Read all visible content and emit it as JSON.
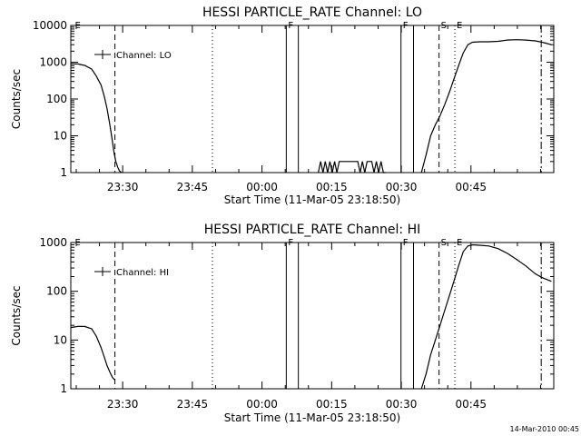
{
  "chart_data": [
    {
      "type": "line",
      "title": "HESSI PARTICLE_RATE Channel: LO",
      "xlabel": "Start Time (11-Mar-05 23:18:50)",
      "ylabel": "Counts/sec",
      "yscale": "log",
      "ylim": [
        1,
        10000
      ],
      "xlim_minutes_after_start": [
        0,
        104
      ],
      "x_tick_labels": [
        "23:30",
        "23:45",
        "00:00",
        "00:15",
        "00:30",
        "00:45"
      ],
      "x_tick_minutes": [
        11.17,
        26.17,
        41.17,
        56.17,
        71.17,
        86.17
      ],
      "y_ticks": [
        1,
        10,
        100,
        1000,
        10000
      ],
      "y_tick_labels": [
        "1",
        "10",
        "100",
        "1000",
        "10000"
      ],
      "grid": false,
      "legend": {
        "placement": "top-left",
        "entries": [
          "Channel: LO"
        ]
      },
      "series": [
        {
          "name": "Channel: LO",
          "segments": [
            {
              "x": [
                0,
                1.5,
                3,
                4.5,
                5.5,
                6.5,
                7.2,
                7.8,
                8.4,
                8.9,
                9.3,
                9.7,
                10.1,
                10.5,
                10.9
              ],
              "y": [
                900,
                900,
                820,
                650,
                420,
                240,
                120,
                55,
                20,
                8,
                3.5,
                2,
                1.4,
                1.1,
                1
              ]
            },
            {
              "x": [
                53.3,
                53.8,
                54.3,
                54.8,
                55.3,
                55.8,
                56.3,
                56.8,
                57.3,
                57.8,
                58.3,
                58.8,
                59.3,
                59.8,
                60.3,
                60.8,
                61.3,
                61.8,
                62.3,
                62.8,
                63.3,
                63.8,
                64.3,
                64.8,
                65.3,
                65.8,
                66.3,
                66.8,
                67.3,
                67.8
              ],
              "y": [
                1,
                2,
                1,
                2,
                1,
                2,
                1,
                2,
                1,
                2,
                2,
                2,
                2,
                2,
                2,
                2,
                2,
                2,
                1,
                2,
                1,
                2,
                2,
                2,
                1,
                2,
                1,
                2,
                1,
                1
              ]
            },
            {
              "x": [
                75.5,
                76.5,
                77.5,
                78.5,
                79.5,
                80.5,
                81.5,
                82.5,
                83.5,
                84.5,
                85.5,
                86.5,
                88,
                90,
                92,
                94,
                96,
                98,
                100,
                101.5,
                103.5
              ],
              "y": [
                1,
                3,
                10,
                20,
                35,
                70,
                150,
                350,
                800,
                1800,
                3000,
                3500,
                3600,
                3600,
                3700,
                4000,
                4100,
                4000,
                3800,
                3500,
                3000
              ]
            }
          ]
        }
      ],
      "annotations": [
        {
          "label": "E",
          "x": 0.5,
          "style": "none"
        },
        {
          "label": "",
          "x": 9.5,
          "style": "dashed"
        },
        {
          "label": "",
          "x": 30.5,
          "style": "dotted"
        },
        {
          "label": "F",
          "x": 46.4,
          "style": "solid"
        },
        {
          "label": "",
          "x": 49.0,
          "style": "solid"
        },
        {
          "label": "F",
          "x": 71.1,
          "style": "solid"
        },
        {
          "label": "",
          "x": 73.8,
          "style": "solid"
        },
        {
          "label": "S",
          "x": 79.3,
          "style": "dashed"
        },
        {
          "label": "E",
          "x": 82.7,
          "style": "dotted"
        },
        {
          "label": "",
          "x": 101.3,
          "style": "dashdot"
        }
      ]
    },
    {
      "type": "line",
      "title": "HESSI PARTICLE_RATE Channel: HI",
      "xlabel": "Start Time (11-Mar-05 23:18:50)",
      "ylabel": "Counts/sec",
      "yscale": "log",
      "ylim": [
        1,
        1000
      ],
      "xlim_minutes_after_start": [
        0,
        104
      ],
      "x_tick_labels": [
        "23:30",
        "23:45",
        "00:00",
        "00:15",
        "00:30",
        "00:45"
      ],
      "x_tick_minutes": [
        11.17,
        26.17,
        41.17,
        56.17,
        71.17,
        86.17
      ],
      "y_ticks": [
        1,
        10,
        100,
        1000
      ],
      "y_tick_labels": [
        "1",
        "10",
        "100",
        "1000"
      ],
      "grid": false,
      "legend": {
        "placement": "top-left",
        "entries": [
          "Channel: HI"
        ]
      },
      "series": [
        {
          "name": "Channel: HI",
          "segments": [
            {
              "x": [
                0,
                1.5,
                3,
                4.5,
                5.5,
                6.5,
                7.2,
                7.8,
                8.4,
                9.0,
                9.5
              ],
              "y": [
                18,
                19,
                19,
                17,
                12,
                7,
                4.5,
                3,
                2.2,
                1.7,
                1.5
              ]
            },
            {
              "x": [
                75.5,
                76.5,
                77.5,
                78.5,
                79.5,
                80.5,
                81.5,
                82.5,
                83.5,
                84.5,
                85.5,
                86.5,
                88,
                90,
                92,
                94,
                96,
                98,
                100,
                101.5,
                103.5
              ],
              "y": [
                1,
                2,
                5,
                10,
                20,
                40,
                80,
                160,
                330,
                650,
                850,
                900,
                880,
                850,
                750,
                600,
                450,
                330,
                230,
                190,
                160
              ]
            }
          ]
        }
      ],
      "annotations": [
        {
          "label": "E",
          "x": 0.5,
          "style": "none"
        },
        {
          "label": "",
          "x": 9.5,
          "style": "dashed"
        },
        {
          "label": "",
          "x": 30.5,
          "style": "dotted"
        },
        {
          "label": "F",
          "x": 46.4,
          "style": "solid"
        },
        {
          "label": "",
          "x": 49.0,
          "style": "solid"
        },
        {
          "label": "F",
          "x": 71.1,
          "style": "solid"
        },
        {
          "label": "",
          "x": 73.8,
          "style": "solid"
        },
        {
          "label": "S",
          "x": 79.3,
          "style": "dashed"
        },
        {
          "label": "E",
          "x": 82.7,
          "style": "dotted"
        },
        {
          "label": "",
          "x": 101.3,
          "style": "dashdot"
        }
      ]
    }
  ],
  "footer": {
    "timestamp": "14-Mar-2010 00:45"
  }
}
